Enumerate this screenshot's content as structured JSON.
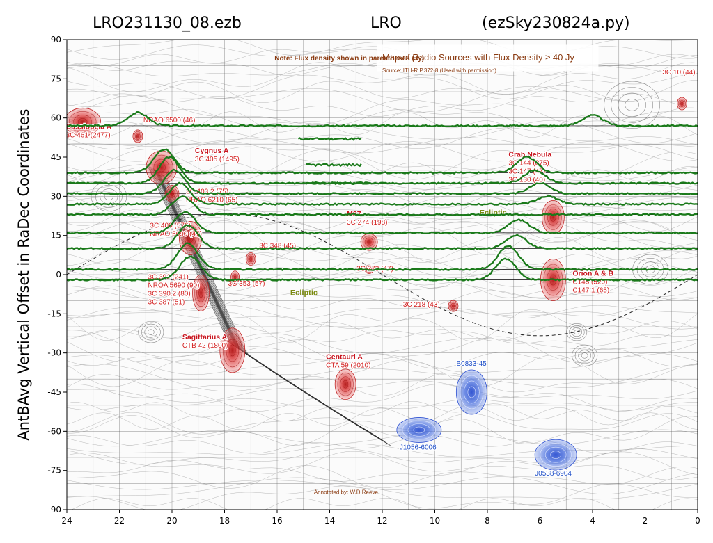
{
  "chart_data": {
    "type": "line",
    "title_left": "LRO231130_08.ezb",
    "title_center": "LRO",
    "title_right": "(ezSky230824a.py)",
    "xlabel": "",
    "ylabel": "AntBAvg Vertical Offset in RaDec Coordinates",
    "xlim": [
      24,
      0
    ],
    "ylim": [
      -90,
      90
    ],
    "x_ticks": [
      "24",
      "22",
      "20",
      "18",
      "16",
      "14",
      "12",
      "10",
      "8",
      "6",
      "4",
      "2",
      "0"
    ],
    "y_ticks": [
      "90",
      "75",
      "60",
      "45",
      "30",
      "15",
      "0",
      "-15",
      "-30",
      "-45",
      "-60",
      "-75",
      "-90"
    ],
    "series_color": "#1a7a1a",
    "drift_scans": [
      {
        "dec": 57,
        "peaks": [
          {
            "ra": 21.3,
            "amp": 5
          },
          {
            "ra": 4.0,
            "amp": 4
          }
        ]
      },
      {
        "dec": 39,
        "peaks": [
          {
            "ra": 20.3,
            "amp": 9
          },
          {
            "ra": 6.5,
            "amp": 6
          }
        ]
      },
      {
        "dec": 35,
        "peaks": [
          {
            "ra": 20.1,
            "amp": 10
          },
          {
            "ra": 6.2,
            "amp": 5
          }
        ]
      },
      {
        "dec": 31,
        "peaks": [
          {
            "ra": 19.9,
            "amp": 9
          },
          {
            "ra": 6.0,
            "amp": 4
          }
        ]
      },
      {
        "dec": 27,
        "peaks": [
          {
            "ra": 19.7,
            "amp": 8
          },
          {
            "ra": 5.7,
            "amp": 3
          }
        ]
      },
      {
        "dec": 23,
        "peaks": [
          {
            "ra": 19.6,
            "amp": 7
          }
        ]
      },
      {
        "dec": 16,
        "peaks": [
          {
            "ra": 19.5,
            "amp": 8
          },
          {
            "ra": 6.8,
            "amp": 5
          }
        ]
      },
      {
        "dec": 10,
        "peaks": [
          {
            "ra": 19.4,
            "amp": 9
          },
          {
            "ra": 6.9,
            "amp": 5
          }
        ]
      },
      {
        "dec": 2,
        "peaks": [
          {
            "ra": 19.4,
            "amp": 10
          },
          {
            "ra": 7.2,
            "amp": 9
          }
        ]
      },
      {
        "dec": -2,
        "peaks": [
          {
            "ra": 19.3,
            "amp": 9
          },
          {
            "ra": 7.3,
            "amp": 8
          }
        ]
      }
    ],
    "fragment_scans": [
      {
        "dec": 52,
        "ra_start": 15.2,
        "ra_end": 12.8
      },
      {
        "dec": 42,
        "ra_start": 14.9,
        "ra_end": 12.8
      },
      {
        "dec": 35,
        "ra_start": 14.9,
        "ra_end": 12.4
      }
    ],
    "background_map": {
      "title": "Map of Radio Sources with Flux Density ≥ 40 Jy",
      "source": "Source: ITU-R P.372-8 (Used with permission)",
      "note": "Note: Flux density shown in parentheses (Jy)",
      "credit": "Annotated by: W.D.Reeve",
      "ecliptic_label_1": "Ecliptic",
      "ecliptic_label_2": "Ecliptic",
      "sources_red": [
        {
          "ra": 23.4,
          "dec": 58.5,
          "rx": 26,
          "ry": 20,
          "name": "Cassiopeia A",
          "lines": [
            "3C 461 (2477)"
          ]
        },
        {
          "ra": 21.3,
          "dec": 53,
          "rx": 7,
          "ry": 9,
          "name": "",
          "lines": [
            "NRAO 6500 (46)"
          ]
        },
        {
          "ra": 20.4,
          "dec": 41,
          "rx": 22,
          "ry": 24,
          "name": "Cygnus A",
          "lines": [
            "3C 405 (1495)"
          ]
        },
        {
          "ra": 20.0,
          "dec": 31,
          "rx": 10,
          "ry": 12,
          "name": "",
          "lines": [
            "3C 403.2 (75)",
            "NRAO 6210 (65)"
          ]
        },
        {
          "ra": 19.3,
          "dec": 14,
          "rx": 16,
          "ry": 24,
          "name": "",
          "lines": [
            "3C 400 (576)",
            "NRAO 5690 (47)"
          ]
        },
        {
          "ra": 18.9,
          "dec": -7,
          "rx": 12,
          "ry": 26,
          "name": "",
          "lines": [
            "3C 392 (241)",
            "NROA 5690 (90)",
            "3C 390.2 (80)",
            "3C 387 (51)"
          ]
        },
        {
          "ra": 17.7,
          "dec": -29,
          "rx": 18,
          "ry": 32,
          "name": "Sagittarius A",
          "lines": [
            "CTB 42 (1800)"
          ]
        },
        {
          "ra": 17.0,
          "dec": 6,
          "rx": 7,
          "ry": 9,
          "name": "",
          "lines": [
            "3C 348 (45)"
          ]
        },
        {
          "ra": 17.6,
          "dec": -1,
          "rx": 6,
          "ry": 9,
          "name": "",
          "lines": [
            "3C 353 (57)"
          ]
        },
        {
          "ra": 13.4,
          "dec": -42,
          "rx": 15,
          "ry": 22,
          "name": "Centauri A",
          "lines": [
            "CTA 59 (2010)"
          ]
        },
        {
          "ra": 12.5,
          "dec": 12.5,
          "rx": 12,
          "ry": 12,
          "name": "M87",
          "lines": [
            "3C 274 (198)"
          ]
        },
        {
          "ra": 12.5,
          "dec": 2,
          "rx": 6,
          "ry": 6,
          "name": "",
          "lines": [
            "3C 273 (47)"
          ]
        },
        {
          "ra": 9.3,
          "dec": -12,
          "rx": 7,
          "ry": 8,
          "name": "",
          "lines": [
            "3C 218 (43)"
          ]
        },
        {
          "ra": 5.5,
          "dec": 22,
          "rx": 16,
          "ry": 24,
          "name": "Crab Nebula",
          "lines": [
            "3C 144 (875)",
            "3C 147 (47)",
            "3C 130 (40)"
          ]
        },
        {
          "ra": 5.5,
          "dec": -2,
          "rx": 18,
          "ry": 30,
          "name": "Orion A & B",
          "lines": [
            "C145 (520)",
            "C147.1 (65)"
          ]
        },
        {
          "ra": 0.6,
          "dec": 65.5,
          "rx": 7,
          "ry": 9,
          "name": "",
          "lines": [
            "3C 10 (44)"
          ]
        }
      ],
      "sources_blue": [
        {
          "ra": 8.6,
          "dec": -45,
          "rx": 22,
          "ry": 32,
          "label": "B0833-45"
        },
        {
          "ra": 10.6,
          "dec": -59.5,
          "rx": 32,
          "ry": 18,
          "label": "J1056-6006"
        },
        {
          "ra": 5.4,
          "dec": -69,
          "rx": 30,
          "ry": 22,
          "label": "J0538-6904"
        }
      ]
    }
  }
}
